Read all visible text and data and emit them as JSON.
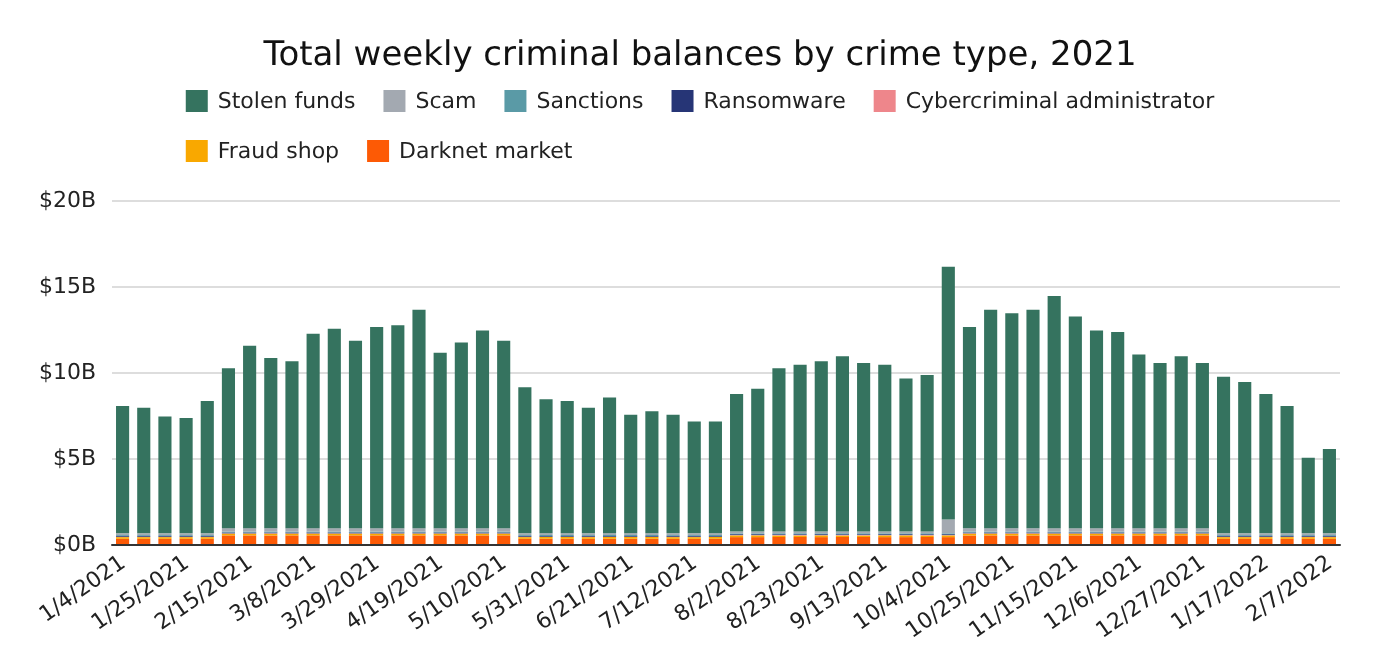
{
  "chart_data": {
    "type": "bar",
    "title": "Total weekly criminal balances by crime type, 2021",
    "stacked": true,
    "legend": "top",
    "grid": "y",
    "categories": [
      "1/4/2021",
      null,
      null,
      "1/25/2021",
      null,
      null,
      "2/15/2021",
      null,
      null,
      "3/8/2021",
      null,
      null,
      "3/29/2021",
      null,
      null,
      "4/19/2021",
      null,
      null,
      "5/10/2021",
      null,
      null,
      "5/31/2021",
      null,
      null,
      "6/21/2021",
      null,
      null,
      "7/12/2021",
      null,
      null,
      "8/2/2021",
      null,
      null,
      "8/23/2021",
      null,
      null,
      "9/13/2021",
      null,
      null,
      "10/4/2021",
      null,
      null,
      "10/25/2021",
      null,
      null,
      "11/15/2021",
      null,
      null,
      "12/6/2021",
      null,
      null,
      "12/27/2021",
      null,
      null,
      "1/17/2022",
      null,
      null,
      "2/7/2022"
    ],
    "ylim": [
      0,
      20
    ],
    "yticks": [
      {
        "value": 0,
        "label": "$0B"
      },
      {
        "value": 5,
        "label": "$5B"
      },
      {
        "value": 10,
        "label": "$10B"
      },
      {
        "value": 15,
        "label": "$15B"
      },
      {
        "value": 20,
        "label": "$20B"
      }
    ],
    "series": [
      {
        "name": "Darknet market",
        "color": "#fd5a05",
        "values": [
          0.3,
          0.3,
          0.3,
          0.3,
          0.3,
          0.5,
          0.5,
          0.5,
          0.5,
          0.5,
          0.5,
          0.5,
          0.5,
          0.5,
          0.5,
          0.5,
          0.5,
          0.5,
          0.5,
          0.3,
          0.3,
          0.3,
          0.3,
          0.3,
          0.3,
          0.3,
          0.3,
          0.3,
          0.3,
          0.4,
          0.4,
          0.4,
          0.4,
          0.4,
          0.4,
          0.4,
          0.4,
          0.4,
          0.4,
          0.4,
          0.5,
          0.5,
          0.5,
          0.5,
          0.5,
          0.5,
          0.5,
          0.5,
          0.5,
          0.5,
          0.5,
          0.5,
          0.3,
          0.3,
          0.3,
          0.3,
          0.3,
          0.3
        ]
      },
      {
        "name": "Fraud shop",
        "color": "#f9a800",
        "values": [
          0.1,
          0.1,
          0.1,
          0.1,
          0.1,
          0.1,
          0.1,
          0.1,
          0.1,
          0.1,
          0.1,
          0.1,
          0.1,
          0.1,
          0.1,
          0.1,
          0.1,
          0.1,
          0.1,
          0.1,
          0.1,
          0.1,
          0.1,
          0.1,
          0.1,
          0.1,
          0.1,
          0.1,
          0.1,
          0.1,
          0.1,
          0.1,
          0.1,
          0.1,
          0.1,
          0.1,
          0.1,
          0.1,
          0.1,
          0.1,
          0.1,
          0.1,
          0.1,
          0.1,
          0.1,
          0.1,
          0.1,
          0.1,
          0.1,
          0.1,
          0.1,
          0.1,
          0.1,
          0.1,
          0.1,
          0.1,
          0.1,
          0.1
        ]
      },
      {
        "name": "Cybercriminal administrator",
        "color": "#ee868b",
        "values": [
          0.02,
          0.02,
          0.02,
          0.02,
          0.02,
          0.02,
          0.02,
          0.02,
          0.02,
          0.02,
          0.02,
          0.02,
          0.02,
          0.02,
          0.02,
          0.02,
          0.02,
          0.02,
          0.02,
          0.02,
          0.02,
          0.02,
          0.02,
          0.02,
          0.02,
          0.02,
          0.02,
          0.02,
          0.02,
          0.02,
          0.02,
          0.02,
          0.02,
          0.02,
          0.02,
          0.02,
          0.02,
          0.02,
          0.02,
          0.02,
          0.02,
          0.02,
          0.02,
          0.02,
          0.02,
          0.02,
          0.02,
          0.02,
          0.02,
          0.02,
          0.02,
          0.02,
          0.02,
          0.02,
          0.02,
          0.02,
          0.02,
          0.02
        ]
      },
      {
        "name": "Ransomware",
        "color": "#263576",
        "values": [
          0.05,
          0.05,
          0.05,
          0.05,
          0.05,
          0.05,
          0.05,
          0.05,
          0.05,
          0.05,
          0.05,
          0.05,
          0.05,
          0.05,
          0.05,
          0.05,
          0.05,
          0.05,
          0.05,
          0.05,
          0.05,
          0.05,
          0.05,
          0.05,
          0.05,
          0.05,
          0.05,
          0.05,
          0.05,
          0.05,
          0.05,
          0.05,
          0.05,
          0.05,
          0.05,
          0.05,
          0.05,
          0.05,
          0.05,
          0.05,
          0.05,
          0.05,
          0.05,
          0.05,
          0.05,
          0.05,
          0.05,
          0.05,
          0.05,
          0.05,
          0.05,
          0.05,
          0.05,
          0.05,
          0.05,
          0.05,
          0.05,
          0.05
        ]
      },
      {
        "name": "Sanctions",
        "color": "#5a9aa6",
        "values": [
          0.05,
          0.05,
          0.05,
          0.05,
          0.05,
          0.05,
          0.05,
          0.05,
          0.05,
          0.05,
          0.05,
          0.05,
          0.05,
          0.05,
          0.05,
          0.05,
          0.05,
          0.05,
          0.05,
          0.05,
          0.05,
          0.05,
          0.05,
          0.05,
          0.05,
          0.05,
          0.05,
          0.05,
          0.05,
          0.05,
          0.05,
          0.05,
          0.05,
          0.05,
          0.05,
          0.05,
          0.05,
          0.05,
          0.05,
          0.05,
          0.05,
          0.05,
          0.05,
          0.05,
          0.05,
          0.05,
          0.05,
          0.05,
          0.05,
          0.05,
          0.05,
          0.05,
          0.05,
          0.05,
          0.05,
          0.05,
          0.05,
          0.05
        ]
      },
      {
        "name": "Scam",
        "color": "#a3a9b1",
        "values": [
          0.1,
          0.1,
          0.1,
          0.1,
          0.1,
          0.2,
          0.2,
          0.2,
          0.2,
          0.2,
          0.2,
          0.2,
          0.2,
          0.2,
          0.2,
          0.2,
          0.2,
          0.2,
          0.2,
          0.1,
          0.1,
          0.1,
          0.1,
          0.1,
          0.1,
          0.1,
          0.1,
          0.1,
          0.1,
          0.1,
          0.1,
          0.1,
          0.1,
          0.1,
          0.1,
          0.1,
          0.1,
          0.1,
          0.1,
          0.8,
          0.2,
          0.2,
          0.2,
          0.2,
          0.2,
          0.2,
          0.2,
          0.2,
          0.2,
          0.2,
          0.2,
          0.2,
          0.1,
          0.1,
          0.1,
          0.1,
          0.1,
          0.1
        ]
      },
      {
        "name": "Stolen funds",
        "color": "#35735f",
        "values": [
          7.4,
          7.3,
          6.8,
          6.7,
          7.7,
          9.3,
          10.6,
          9.9,
          9.7,
          11.3,
          11.6,
          10.9,
          11.7,
          11.8,
          12.7,
          10.2,
          10.8,
          11.5,
          10.9,
          8.5,
          7.8,
          7.7,
          7.3,
          7.9,
          6.9,
          7.1,
          6.9,
          6.5,
          6.5,
          8.0,
          8.3,
          9.5,
          9.7,
          9.9,
          10.2,
          9.8,
          9.7,
          8.9,
          9.1,
          14.7,
          11.7,
          12.7,
          12.5,
          12.7,
          13.5,
          12.3,
          11.5,
          11.4,
          10.1,
          9.6,
          10.0,
          9.6,
          9.1,
          8.8,
          8.1,
          7.4,
          4.4,
          4.9
        ]
      }
    ]
  }
}
